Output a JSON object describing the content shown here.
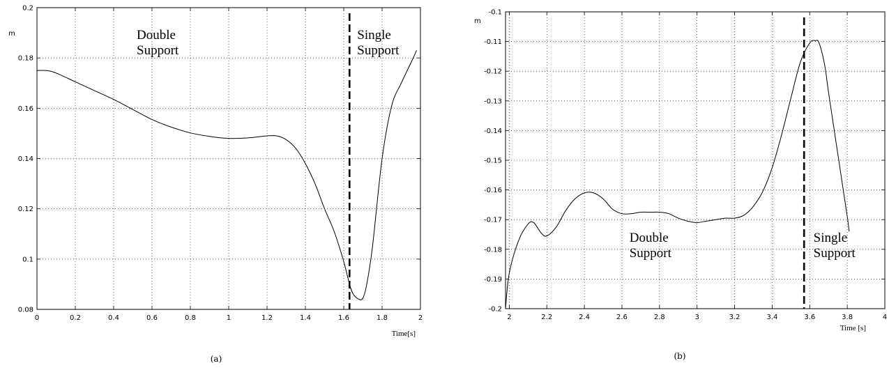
{
  "chart_data": [
    {
      "type": "line",
      "caption": "(a)",
      "xlabel": "Time[s]",
      "ylabel": "m",
      "xlim": [
        0,
        2
      ],
      "ylim": [
        0.08,
        0.2
      ],
      "xticks": [
        "0",
        "0.2",
        "0.4",
        "0.6",
        "0.8",
        "1",
        "1.2",
        "1.4",
        "1.6",
        "1.8",
        "2"
      ],
      "yticks": [
        "0.08",
        "0.1",
        "0.12",
        "0.14",
        "0.16",
        "0.18",
        "0.2"
      ],
      "grid": true,
      "phase_boundary": 1.63,
      "annotations": [
        {
          "lines": [
            "Double",
            "Support"
          ],
          "x": 0.52,
          "y": 0.1875
        },
        {
          "lines": [
            "Single",
            "Support"
          ],
          "x": 1.67,
          "y": 0.1875
        }
      ],
      "series": [
        {
          "x": [
            0,
            0.05,
            0.1,
            0.2,
            0.3,
            0.4,
            0.5,
            0.6,
            0.7,
            0.8,
            0.9,
            1.0,
            1.1,
            1.2,
            1.25,
            1.3,
            1.35,
            1.4,
            1.45,
            1.5,
            1.55,
            1.6,
            1.63,
            1.65,
            1.68,
            1.7,
            1.72,
            1.75,
            1.8,
            1.85,
            1.9,
            1.95,
            1.98
          ],
          "y": [
            0.175,
            0.175,
            0.174,
            0.1705,
            0.167,
            0.1635,
            0.1595,
            0.1555,
            0.1525,
            0.1502,
            0.1488,
            0.148,
            0.1482,
            0.149,
            0.149,
            0.1475,
            0.144,
            0.138,
            0.13,
            0.12,
            0.111,
            0.099,
            0.09,
            0.086,
            0.084,
            0.0845,
            0.09,
            0.105,
            0.14,
            0.161,
            0.17,
            0.178,
            0.183
          ]
        }
      ]
    },
    {
      "type": "line",
      "caption": "(b)",
      "xlabel": "Time [s]",
      "ylabel": "m",
      "xlim": [
        1.98,
        4
      ],
      "ylim": [
        -0.2,
        -0.1
      ],
      "xticks": [
        "2",
        "2.2",
        "2.4",
        "2.6",
        "2.8",
        "3",
        "3.2",
        "3.4",
        "3.6",
        "3.8",
        "4"
      ],
      "yticks": [
        "-0.2",
        "-0.19",
        "-0.18",
        "-0.17",
        "-0.16",
        "-0.15",
        "-0.14",
        "-0.13",
        "-0.12",
        "-0.11",
        "-0.1"
      ],
      "grid": true,
      "phase_boundary": 3.57,
      "annotations": [
        {
          "lines": [
            "Double",
            "Support"
          ],
          "x": 2.64,
          "y": -0.1775
        },
        {
          "lines": [
            "Single",
            "Support"
          ],
          "x": 3.62,
          "y": -0.1775
        }
      ],
      "series": [
        {
          "x": [
            1.98,
            2.0,
            2.05,
            2.1,
            2.13,
            2.17,
            2.2,
            2.25,
            2.3,
            2.35,
            2.4,
            2.45,
            2.5,
            2.55,
            2.6,
            2.65,
            2.7,
            2.75,
            2.8,
            2.85,
            2.9,
            2.95,
            3.0,
            3.05,
            3.1,
            3.15,
            3.2,
            3.25,
            3.3,
            3.35,
            3.4,
            3.45,
            3.5,
            3.55,
            3.6,
            3.63,
            3.65,
            3.68,
            3.7,
            3.75,
            3.8,
            3.81
          ],
          "y": [
            -0.2,
            -0.188,
            -0.177,
            -0.1715,
            -0.171,
            -0.1745,
            -0.1755,
            -0.1725,
            -0.167,
            -0.163,
            -0.161,
            -0.161,
            -0.163,
            -0.1665,
            -0.168,
            -0.168,
            -0.1675,
            -0.1675,
            -0.1675,
            -0.168,
            -0.1695,
            -0.1705,
            -0.171,
            -0.1705,
            -0.17,
            -0.1695,
            -0.1695,
            -0.1685,
            -0.1655,
            -0.1605,
            -0.1525,
            -0.1415,
            -0.129,
            -0.117,
            -0.1105,
            -0.1097,
            -0.1105,
            -0.118,
            -0.127,
            -0.148,
            -0.169,
            -0.174
          ]
        }
      ]
    }
  ]
}
